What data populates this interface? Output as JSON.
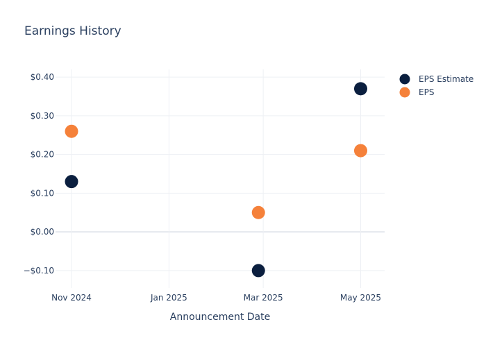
{
  "chart_data": {
    "type": "scatter",
    "title": "Earnings History",
    "xlabel": "Announcement Date",
    "ylabel": "",
    "x_ticks": [
      "Nov 2024",
      "Jan 2025",
      "Mar 2025",
      "May 2025"
    ],
    "x_tick_dates": [
      "2024-11-01",
      "2025-01-01",
      "2025-03-01",
      "2025-05-01"
    ],
    "xlim": [
      "2024-10-22",
      "2025-05-16"
    ],
    "y_ticks": [
      -0.1,
      0.0,
      0.1,
      0.2,
      0.3,
      0.4
    ],
    "y_tick_labels": [
      "−$0.10",
      "$0.00",
      "$0.10",
      "$0.20",
      "$0.30",
      "$0.40"
    ],
    "ylim": [
      -0.145,
      0.42
    ],
    "grid": true,
    "legend_position": "top-right",
    "series": [
      {
        "name": "EPS Estimate",
        "color": "#0b1f3f",
        "points": [
          {
            "x": "2024-11-01",
            "y": 0.13
          },
          {
            "x": "2025-02-26",
            "y": -0.1
          },
          {
            "x": "2025-05-01",
            "y": 0.37
          }
        ]
      },
      {
        "name": "EPS",
        "color": "#f5813a",
        "points": [
          {
            "x": "2024-11-01",
            "y": 0.26
          },
          {
            "x": "2025-02-26",
            "y": 0.05
          },
          {
            "x": "2025-05-01",
            "y": 0.21
          }
        ]
      }
    ]
  }
}
